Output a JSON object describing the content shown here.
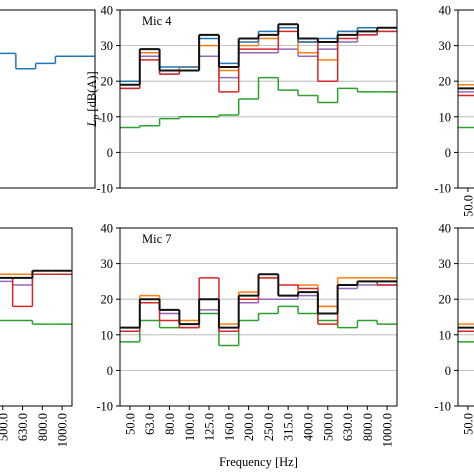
{
  "chart_data": [
    {
      "type": "line",
      "ylim": [
        -10,
        40
      ],
      "grid": false,
      "categories": [
        null,
        null,
        null,
        null,
        null,
        null,
        null,
        null,
        null,
        null,
        null,
        null,
        null,
        null
      ],
      "series": [
        {
          "color": "#1f77b4",
          "values": [
            null,
            null,
            null,
            null,
            null,
            null,
            null,
            null,
            null,
            27.8,
            23.5,
            25,
            27,
            27
          ]
        }
      ]
    },
    {
      "type": "line",
      "title": "Mic 4",
      "ylim": [
        -10,
        40
      ],
      "yticks": [
        40,
        30,
        20,
        10,
        0,
        -10
      ],
      "grid": true,
      "ylabel_symbol": "L",
      "ylabel_sub": "p",
      "ylabel_unit": "[dB(A)]",
      "categories": [
        null,
        null,
        null,
        null,
        null,
        null,
        null,
        null,
        null,
        null,
        null,
        null,
        null,
        null
      ],
      "series": [
        {
          "color": "#2ca02c",
          "values": [
            7,
            7.5,
            9.5,
            10,
            10,
            10.5,
            15,
            21,
            17.5,
            16,
            14,
            18,
            17,
            17
          ]
        },
        {
          "color": "#9467bd",
          "values": [
            18,
            27,
            22,
            23,
            27,
            21,
            28,
            28,
            29,
            27,
            29,
            31,
            33,
            34
          ]
        },
        {
          "color": "#ff7f0e",
          "values": [
            20,
            28,
            23,
            24,
            30,
            23,
            30,
            32,
            35,
            28,
            26,
            34,
            34,
            35
          ]
        },
        {
          "color": "#d62728",
          "values": [
            18,
            26,
            22,
            23,
            33,
            17,
            29,
            29,
            34,
            31,
            20,
            32,
            33,
            34
          ]
        },
        {
          "color": "#1f77b4",
          "values": [
            20,
            29,
            24,
            24,
            32,
            25,
            31,
            34,
            35,
            31,
            32,
            34,
            35,
            35
          ]
        },
        {
          "color": "#111111",
          "values": [
            19,
            29,
            23,
            23,
            33,
            24,
            32,
            33,
            36,
            32,
            31,
            33,
            34,
            35
          ]
        }
      ]
    },
    {
      "type": "line",
      "ylim": [
        -10,
        40
      ],
      "yticks": [
        40,
        30,
        20,
        10,
        0,
        -10
      ],
      "grid": true,
      "categories": [
        "50.0",
        null,
        null,
        null,
        null,
        null,
        null,
        null,
        null,
        null,
        null,
        null,
        null,
        null
      ],
      "series": [
        {
          "color": "#2ca02c",
          "values": [
            7,
            null,
            null,
            null,
            null,
            null,
            null,
            null,
            null,
            null,
            null,
            null,
            null,
            null
          ]
        },
        {
          "color": "#9467bd",
          "values": [
            17,
            null,
            null,
            null,
            null,
            null,
            null,
            null,
            null,
            null,
            null,
            null,
            null,
            null
          ]
        },
        {
          "color": "#ff7f0e",
          "values": [
            19,
            null,
            null,
            null,
            null,
            null,
            null,
            null,
            null,
            null,
            null,
            null,
            null,
            null
          ]
        },
        {
          "color": "#d62728",
          "values": [
            16,
            null,
            null,
            null,
            null,
            null,
            null,
            null,
            null,
            null,
            null,
            null,
            null,
            null
          ]
        },
        {
          "color": "#111111",
          "values": [
            18,
            null,
            null,
            null,
            null,
            null,
            null,
            null,
            null,
            null,
            null,
            null,
            null,
            null
          ]
        }
      ]
    },
    {
      "type": "line",
      "ylim": [
        -10,
        40
      ],
      "grid": false,
      "categories": [
        null,
        null,
        null,
        null,
        null,
        null,
        null,
        null,
        null,
        null,
        "500.0",
        "630.0",
        "800.0",
        "1000.0"
      ],
      "series": [
        {
          "color": "#2ca02c",
          "values": [
            null,
            null,
            null,
            null,
            null,
            null,
            null,
            null,
            null,
            null,
            14,
            14,
            13,
            13
          ]
        },
        {
          "color": "#9467bd",
          "values": [
            null,
            null,
            null,
            null,
            null,
            null,
            null,
            null,
            null,
            null,
            25,
            24,
            27,
            27
          ]
        },
        {
          "color": "#ff7f0e",
          "values": [
            null,
            null,
            null,
            null,
            null,
            null,
            null,
            null,
            null,
            null,
            27,
            27,
            28,
            28
          ]
        },
        {
          "color": "#d62728",
          "values": [
            null,
            null,
            null,
            null,
            null,
            null,
            null,
            null,
            null,
            null,
            26,
            18,
            27,
            27
          ]
        },
        {
          "color": "#111111",
          "values": [
            null,
            null,
            null,
            null,
            null,
            null,
            null,
            null,
            null,
            null,
            26,
            26,
            28,
            28
          ]
        }
      ]
    },
    {
      "type": "line",
      "title": "Mic 7",
      "ylim": [
        -10,
        40
      ],
      "yticks": [
        40,
        30,
        20,
        10,
        0,
        -10
      ],
      "grid": true,
      "xlabel": "Frequency [Hz]",
      "categories": [
        "50.0",
        "63.0",
        "80.0",
        "100.0",
        "125.0",
        "160.0",
        "200.0",
        "250.0",
        "315.0",
        "400.0",
        "500.0",
        "630.0",
        "800.0",
        "1000.0"
      ],
      "series": [
        {
          "color": "#2ca02c",
          "values": [
            8,
            14,
            12,
            12,
            16,
            7,
            14,
            16,
            18,
            16,
            14,
            12,
            14,
            13
          ]
        },
        {
          "color": "#9467bd",
          "values": [
            11,
            19,
            16,
            13,
            17,
            11,
            19,
            20,
            20,
            21,
            18,
            23,
            24,
            24
          ]
        },
        {
          "color": "#ff7f0e",
          "values": [
            12,
            21,
            17,
            14,
            20,
            13,
            22,
            26,
            21,
            24,
            18,
            26,
            26,
            26
          ]
        },
        {
          "color": "#d62728",
          "values": [
            11,
            19,
            14,
            12,
            26,
            11,
            20,
            26,
            24,
            23,
            13,
            24,
            25,
            24
          ]
        },
        {
          "color": "#111111",
          "values": [
            12,
            20,
            17,
            13,
            20,
            12,
            21,
            27,
            21,
            22,
            16,
            24,
            25,
            25
          ]
        }
      ]
    },
    {
      "type": "line",
      "ylim": [
        -10,
        40
      ],
      "yticks": [
        40,
        30,
        20,
        10,
        0,
        -10
      ],
      "grid": true,
      "categories": [
        "50.0",
        null,
        null,
        null,
        null,
        null,
        null,
        null,
        null,
        null,
        null,
        null,
        null,
        null
      ],
      "series": [
        {
          "color": "#2ca02c",
          "values": [
            8,
            null,
            null,
            null,
            null,
            null,
            null,
            null,
            null,
            null,
            null,
            null,
            null,
            null
          ]
        },
        {
          "color": "#9467bd",
          "values": [
            11,
            null,
            null,
            null,
            null,
            null,
            null,
            null,
            null,
            null,
            null,
            null,
            null,
            null
          ]
        },
        {
          "color": "#ff7f0e",
          "values": [
            13,
            null,
            null,
            null,
            null,
            null,
            null,
            null,
            null,
            null,
            null,
            null,
            null,
            null
          ]
        },
        {
          "color": "#d62728",
          "values": [
            11,
            null,
            null,
            null,
            null,
            null,
            null,
            null,
            null,
            null,
            null,
            null,
            null,
            null
          ]
        },
        {
          "color": "#111111",
          "values": [
            12,
            null,
            null,
            null,
            null,
            null,
            null,
            null,
            null,
            null,
            null,
            null,
            null,
            null
          ]
        }
      ]
    }
  ]
}
